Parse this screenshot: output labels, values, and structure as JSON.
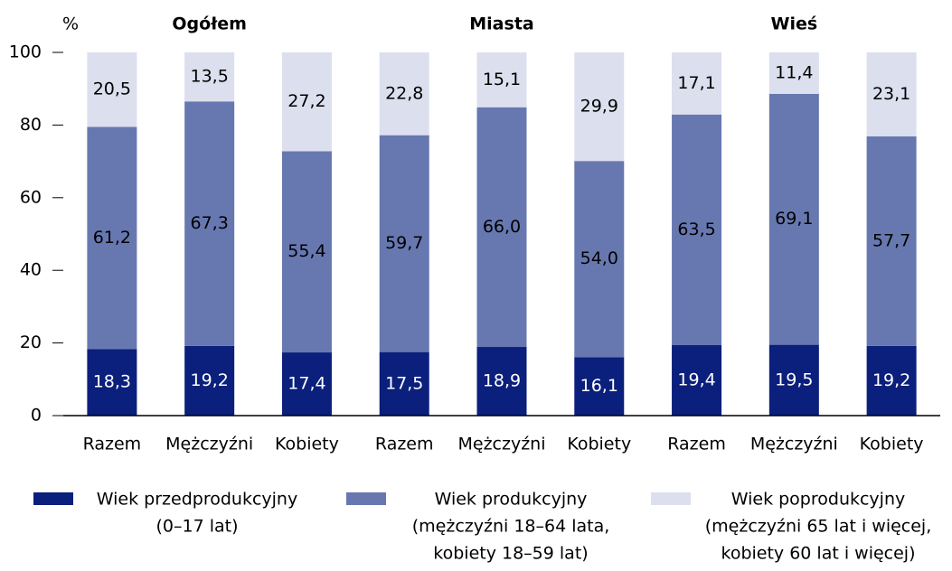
{
  "chart_data": {
    "type": "stacked_bar",
    "y_unit_label": "%",
    "groups": [
      "Ogółem",
      "Miasta",
      "Wieś"
    ],
    "categories": [
      "Razem",
      "Mężczyźni",
      "Kobiety",
      "Razem",
      "Mężczyźni",
      "Kobiety",
      "Razem",
      "Mężczyźni",
      "Kobiety"
    ],
    "series": [
      {
        "name": "Wiek przedprodukcyjny",
        "description_lines": [
          "(0–17 lat)"
        ],
        "color": "#0b1f7c",
        "label_color": "#ffffff",
        "values": [
          18.3,
          19.2,
          17.4,
          17.5,
          18.9,
          16.1,
          19.4,
          19.5,
          19.2
        ],
        "value_labels": [
          "18,3",
          "19,2",
          "17,4",
          "17,5",
          "18,9",
          "16,1",
          "19,4",
          "19,5",
          "19,2"
        ]
      },
      {
        "name": "Wiek produkcyjny",
        "description_lines": [
          "(mężczyźni 18–64 lata,",
          "kobiety 18–59 lat)"
        ],
        "color": "#6778b0",
        "label_color": "#000000",
        "values": [
          61.2,
          67.3,
          55.4,
          59.7,
          66.0,
          54.0,
          63.5,
          69.1,
          57.7
        ],
        "value_labels": [
          "61,2",
          "67,3",
          "55,4",
          "59,7",
          "66,0",
          "54,0",
          "63,5",
          "69,1",
          "57,7"
        ]
      },
      {
        "name": "Wiek poprodukcyjny",
        "description_lines": [
          "(mężczyźni 65 lat i więcej,",
          "kobiety 60 lat i więcej)"
        ],
        "color": "#dcdfee",
        "label_color": "#000000",
        "values": [
          20.5,
          13.5,
          27.2,
          22.8,
          15.1,
          29.9,
          17.1,
          11.4,
          23.1
        ],
        "value_labels": [
          "20,5",
          "13,5",
          "27,2",
          "22,8",
          "15,1",
          "29,9",
          "17,1",
          "11,4",
          "23,1"
        ]
      }
    ],
    "ylim": [
      0,
      100
    ],
    "yticks": [
      0,
      20,
      40,
      60,
      80,
      100
    ],
    "grid": false
  }
}
